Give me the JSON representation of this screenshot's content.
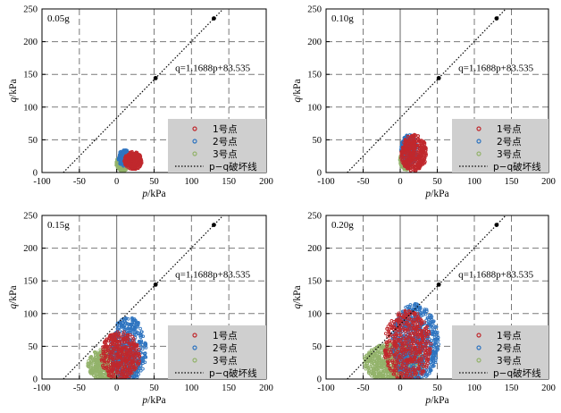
{
  "chart_data": [
    {
      "type": "scatter",
      "panel_label": "0.05g",
      "xlabel": "p/kPa",
      "ylabel": "q/kPa",
      "xlim": [
        -100,
        200
      ],
      "ylim": [
        0,
        250
      ],
      "xticks": [
        -100,
        -50,
        0,
        50,
        100,
        150,
        200
      ],
      "yticks": [
        0,
        50,
        100,
        150,
        200,
        250
      ],
      "grid": true,
      "legend_position": "bottom-right",
      "line": {
        "name": "p−q破坏线",
        "equation": "q=1.1688p+83.535",
        "slope": 1.1688,
        "intercept": 83.535,
        "marked_points": [
          [
            52,
            144.3
          ],
          [
            130,
            235.5
          ]
        ]
      },
      "series": [
        {
          "name": "1号点",
          "color": "#c0282d",
          "cloud": {
            "cx": 22,
            "cy": 18,
            "rx": 12,
            "ry": 14,
            "n": 250
          }
        },
        {
          "name": "2号点",
          "color": "#2e74c0",
          "cloud": {
            "cx": 10,
            "cy": 22,
            "rx": 8,
            "ry": 13,
            "n": 170
          }
        },
        {
          "name": "3号点",
          "color": "#93b36b",
          "cloud": {
            "cx": 8,
            "cy": 14,
            "rx": 9,
            "ry": 12,
            "n": 220
          }
        }
      ]
    },
    {
      "type": "scatter",
      "panel_label": "0.10g",
      "xlabel": "p/kPa",
      "ylabel": "q/kPa",
      "xlim": [
        -100,
        200
      ],
      "ylim": [
        0,
        250
      ],
      "xticks": [
        -100,
        -50,
        0,
        50,
        100,
        150,
        200
      ],
      "yticks": [
        0,
        50,
        100,
        150,
        200,
        250
      ],
      "grid": true,
      "legend_position": "bottom-right",
      "line": {
        "name": "p−q破坏线",
        "equation": "q=1.1688p+83.535",
        "slope": 1.1688,
        "intercept": 83.535,
        "marked_points": [
          [
            52,
            144.3
          ],
          [
            130,
            235.5
          ]
        ]
      },
      "series": [
        {
          "name": "1号点",
          "color": "#c0282d",
          "cloud": {
            "cx": 18,
            "cy": 30,
            "rx": 18,
            "ry": 28,
            "n": 380
          }
        },
        {
          "name": "2号点",
          "color": "#2e74c0",
          "cloud": {
            "cx": 12,
            "cy": 34,
            "rx": 11,
            "ry": 24,
            "n": 280
          }
        },
        {
          "name": "3号点",
          "color": "#93b36b",
          "cloud": {
            "cx": 8,
            "cy": 18,
            "rx": 9,
            "ry": 14,
            "n": 300
          }
        }
      ]
    },
    {
      "type": "scatter",
      "panel_label": "0.15g",
      "xlabel": "p/kPa",
      "ylabel": "q/kPa",
      "xlim": [
        -100,
        200
      ],
      "ylim": [
        0,
        250
      ],
      "xticks": [
        -100,
        -50,
        0,
        50,
        100,
        150,
        200
      ],
      "yticks": [
        0,
        50,
        100,
        150,
        200,
        250
      ],
      "grid": true,
      "legend_position": "bottom-right",
      "line": {
        "name": "p−q破坏线",
        "equation": "q=1.1688p+83.535",
        "slope": 1.1688,
        "intercept": 83.535,
        "marked_points": [
          [
            52,
            144.3
          ],
          [
            130,
            235.5
          ]
        ]
      },
      "series": [
        {
          "name": "1号点",
          "color": "#c0282d",
          "cloud": {
            "cx": 5,
            "cy": 35,
            "rx": 26,
            "ry": 38,
            "n": 420
          }
        },
        {
          "name": "2号点",
          "color": "#2e74c0",
          "cloud": {
            "cx": 15,
            "cy": 45,
            "rx": 25,
            "ry": 50,
            "n": 500
          }
        },
        {
          "name": "3号点",
          "color": "#93b36b",
          "cloud": {
            "cx": -5,
            "cy": 22,
            "rx": 34,
            "ry": 28,
            "n": 650
          }
        }
      ]
    },
    {
      "type": "scatter",
      "panel_label": "0.20g",
      "xlabel": "p/kPa",
      "ylabel": "q/kPa",
      "xlim": [
        -100,
        200
      ],
      "ylim": [
        0,
        250
      ],
      "xticks": [
        -100,
        -50,
        0,
        50,
        100,
        150,
        200
      ],
      "yticks": [
        0,
        50,
        100,
        150,
        200,
        250
      ],
      "grid": true,
      "legend_position": "bottom-right",
      "line": {
        "name": "p−q破坏线",
        "equation": "q=1.1688p+83.535",
        "slope": 1.1688,
        "intercept": 83.535,
        "marked_points": [
          [
            52,
            144.3
          ],
          [
            130,
            235.5
          ]
        ]
      },
      "series": [
        {
          "name": "1号点",
          "color": "#c0282d",
          "cloud": {
            "cx": 10,
            "cy": 50,
            "rx": 32,
            "ry": 55,
            "n": 500
          }
        },
        {
          "name": "2号点",
          "color": "#2e74c0",
          "cloud": {
            "cx": 20,
            "cy": 55,
            "rx": 32,
            "ry": 60,
            "n": 650
          }
        },
        {
          "name": "3号点",
          "color": "#93b36b",
          "cloud": {
            "cx": -8,
            "cy": 25,
            "rx": 42,
            "ry": 30,
            "n": 750
          }
        }
      ]
    }
  ]
}
